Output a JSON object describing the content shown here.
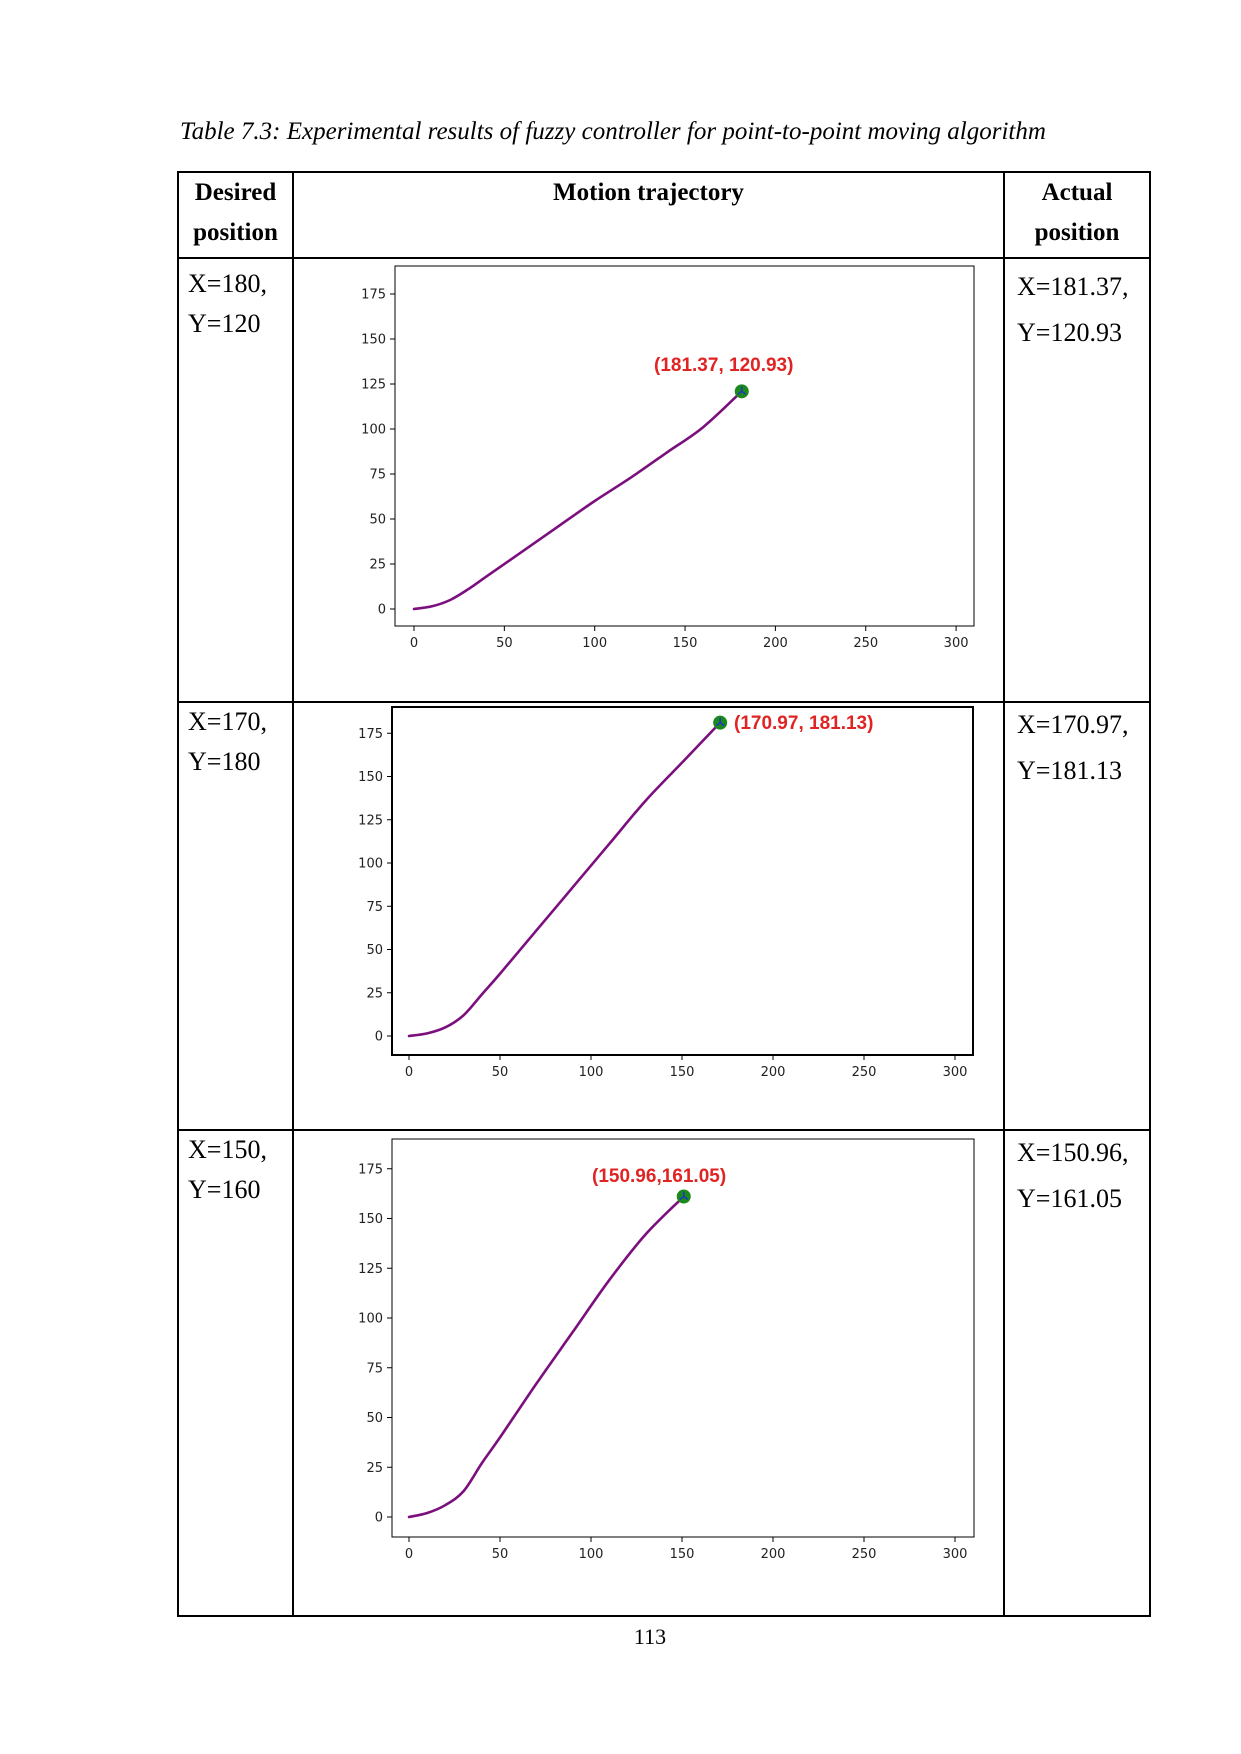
{
  "caption": "Table 7.3: Experimental results of fuzzy controller for point-to-point moving algorithm",
  "table": {
    "headers": {
      "desired": [
        "Desired",
        "position"
      ],
      "trajectory": "Motion trajectory",
      "actual": [
        "Actual",
        "position"
      ]
    },
    "rows": [
      {
        "desired": [
          "X=180,",
          "Y=120"
        ],
        "actual": [
          "X=181.37,",
          "Y=120.93"
        ]
      },
      {
        "desired": [
          "X=170,",
          "Y=180"
        ],
        "actual": [
          "X=170.97,",
          "Y=181.13"
        ]
      },
      {
        "desired": [
          "X=150,",
          "Y=160"
        ],
        "actual": [
          "X=150.96,",
          "Y=161.05"
        ]
      }
    ]
  },
  "page_number": "113",
  "colors": {
    "trajectory": "#7b0f7e",
    "endpoint_marker": "#1a8a1a",
    "annotation": "#e02424",
    "axis": "#000000"
  },
  "chart_data": [
    {
      "type": "line",
      "title": "",
      "xlabel": "",
      "ylabel": "",
      "xlim": [
        -10,
        310
      ],
      "ylim": [
        -9,
        188
      ],
      "xticks": [
        0,
        50,
        100,
        150,
        200,
        250,
        300
      ],
      "yticks": [
        0,
        25,
        50,
        75,
        100,
        125,
        150,
        175
      ],
      "grid": false,
      "series": [
        {
          "name": "trajectory",
          "x": [
            0,
            10,
            20,
            30,
            40,
            60,
            80,
            100,
            120,
            140,
            160,
            181.37
          ],
          "y": [
            0,
            1.5,
            5,
            11,
            18,
            32,
            46,
            60,
            73,
            87,
            101,
            120.93
          ]
        }
      ],
      "endpoint": {
        "x": 181.37,
        "y": 120.93
      },
      "annotation": "(181.37, 120.93)"
    },
    {
      "type": "line",
      "title": "",
      "xlabel": "",
      "ylabel": "",
      "xlim": [
        -10,
        310
      ],
      "ylim": [
        -9,
        190
      ],
      "xticks": [
        0,
        50,
        100,
        150,
        200,
        250,
        300
      ],
      "yticks": [
        0,
        25,
        50,
        75,
        100,
        125,
        150,
        175
      ],
      "grid": false,
      "series": [
        {
          "name": "trajectory",
          "x": [
            0,
            10,
            20,
            30,
            40,
            50,
            70,
            90,
            110,
            130,
            150,
            170.97
          ],
          "y": [
            0,
            1.5,
            5,
            12,
            24,
            36,
            61,
            86,
            111,
            136,
            158,
            181.13
          ]
        }
      ],
      "endpoint": {
        "x": 170.97,
        "y": 181.13
      },
      "annotation": "(170.97, 181.13)"
    },
    {
      "type": "line",
      "title": "",
      "xlabel": "",
      "ylabel": "",
      "xlim": [
        -10,
        310
      ],
      "ylim": [
        -10,
        190
      ],
      "xticks": [
        0,
        50,
        100,
        150,
        200,
        250,
        300
      ],
      "yticks": [
        0,
        25,
        50,
        75,
        100,
        125,
        150,
        175
      ],
      "grid": false,
      "series": [
        {
          "name": "trajectory",
          "x": [
            0,
            10,
            20,
            30,
            40,
            50,
            70,
            90,
            110,
            130,
            150.96
          ],
          "y": [
            0,
            2,
            6,
            13,
            27,
            40,
            67,
            93,
            119,
            142,
            161.05
          ]
        }
      ],
      "endpoint": {
        "x": 150.96,
        "y": 161.05
      },
      "annotation": "(150.96,161.05)"
    }
  ]
}
